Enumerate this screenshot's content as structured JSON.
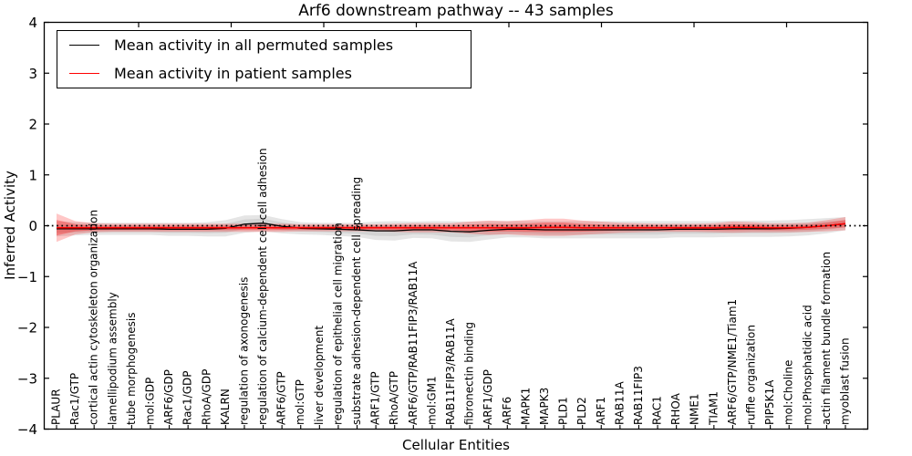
{
  "title": "Arf6 downstream pathway -- 43 samples",
  "legend": {
    "items": [
      {
        "label": "Mean activity in all permuted samples",
        "color": "#000000"
      },
      {
        "label": "Mean activity in patient samples",
        "color": "#ff0000"
      }
    ]
  },
  "axes": {
    "ylabel": "Inferred Activity",
    "xlabel": "Cellular Entities",
    "ytick_labels": [
      "4",
      "3",
      "2",
      "1",
      "0",
      "−1",
      "−2",
      "−3",
      "−4"
    ]
  },
  "chart_data": {
    "type": "line",
    "title": "Arf6 downstream pathway -- 43 samples",
    "xlabel": "Cellular Entities",
    "ylabel": "Inferred Activity",
    "ylim": [
      -4,
      4
    ],
    "yticks": [
      4,
      3,
      2,
      1,
      0,
      -1,
      -2,
      -3,
      -4
    ],
    "grid": false,
    "legend_position": "upper left",
    "zero_line": {
      "y": 0,
      "style": "dotted",
      "color": "#000000"
    },
    "categories": [
      "PLAUR",
      "Rac1/GTP",
      "cortical actin cytoskeleton organization",
      "lamellipodium assembly",
      "tube morphogenesis",
      "mol:GDP",
      "ARF6/GDP",
      "Rac1/GDP",
      "RhoA/GDP",
      "KALRN",
      "regulation of axonogenesis",
      "regulation of calcium-dependent cell-cell adhesion",
      "ARF6/GTP",
      "mol:GTP",
      "liver development",
      "regulation of epithelial cell migration",
      "substrate adhesion-dependent cell spreading",
      "ARF1/GTP",
      "RhoA/GTP",
      "ARF6/GTP/RAB11FIP3/RAB11A",
      "mol:GM1",
      "RAB11FIP3/RAB11A",
      "fibronectin binding",
      "ARF1/GDP",
      "ARF6",
      "MAPK1",
      "MAPK3",
      "PLD1",
      "PLD2",
      "ARF1",
      "RAB11A",
      "RAB11FIP3",
      "RAC1",
      "RHOA",
      "NME1",
      "TIAM1",
      "ARF6/GTP/NME1/Tiam1",
      "ruffle organization",
      "PIP5K1A",
      "mol:Choline",
      "mol:Phosphatidic acid",
      "actin filament bundle formation",
      "myoblast fusion"
    ],
    "series": [
      {
        "name": "Mean activity in all permuted samples",
        "color": "#000000",
        "band_color": "rgba(0,0,0,0.10)",
        "values": [
          -0.06,
          -0.06,
          -0.06,
          -0.06,
          -0.06,
          -0.06,
          -0.07,
          -0.07,
          -0.07,
          -0.05,
          0.03,
          0.05,
          -0.01,
          -0.05,
          -0.06,
          -0.07,
          -0.08,
          -0.1,
          -0.1,
          -0.08,
          -0.08,
          -0.11,
          -0.12,
          -0.09,
          -0.07,
          -0.07,
          -0.08,
          -0.08,
          -0.08,
          -0.08,
          -0.08,
          -0.08,
          -0.08,
          -0.07,
          -0.07,
          -0.07,
          -0.06,
          -0.06,
          -0.06,
          -0.05,
          -0.03,
          0.0,
          0.04
        ],
        "std": [
          0.15,
          0.13,
          0.12,
          0.12,
          0.12,
          0.12,
          0.13,
          0.13,
          0.14,
          0.16,
          0.17,
          0.16,
          0.14,
          0.12,
          0.12,
          0.13,
          0.14,
          0.18,
          0.19,
          0.16,
          0.17,
          0.2,
          0.2,
          0.18,
          0.16,
          0.16,
          0.17,
          0.17,
          0.17,
          0.17,
          0.17,
          0.17,
          0.17,
          0.16,
          0.16,
          0.16,
          0.16,
          0.16,
          0.16,
          0.16,
          0.16,
          0.15,
          0.13
        ]
      },
      {
        "name": "Mean activity in patient samples",
        "color": "#ff0000",
        "band_color": "rgba(255,0,0,0.22)",
        "values": [
          -0.04,
          -0.04,
          -0.04,
          -0.04,
          -0.04,
          -0.04,
          -0.04,
          -0.04,
          -0.04,
          -0.04,
          -0.04,
          -0.04,
          -0.04,
          -0.04,
          -0.04,
          -0.04,
          -0.04,
          -0.04,
          -0.04,
          -0.04,
          -0.04,
          -0.04,
          -0.04,
          -0.04,
          -0.04,
          -0.04,
          -0.03,
          -0.03,
          -0.04,
          -0.04,
          -0.04,
          -0.04,
          -0.04,
          -0.04,
          -0.04,
          -0.04,
          -0.03,
          -0.03,
          -0.04,
          -0.04,
          -0.03,
          0.0,
          0.04
        ],
        "std": [
          0.28,
          0.13,
          0.09,
          0.08,
          0.08,
          0.08,
          0.08,
          0.08,
          0.08,
          0.08,
          0.08,
          0.08,
          0.08,
          0.07,
          0.07,
          0.07,
          0.07,
          0.07,
          0.08,
          0.09,
          0.09,
          0.09,
          0.12,
          0.14,
          0.13,
          0.15,
          0.17,
          0.17,
          0.14,
          0.12,
          0.1,
          0.09,
          0.08,
          0.08,
          0.08,
          0.09,
          0.11,
          0.1,
          0.09,
          0.09,
          0.09,
          0.11,
          0.13
        ]
      }
    ]
  }
}
